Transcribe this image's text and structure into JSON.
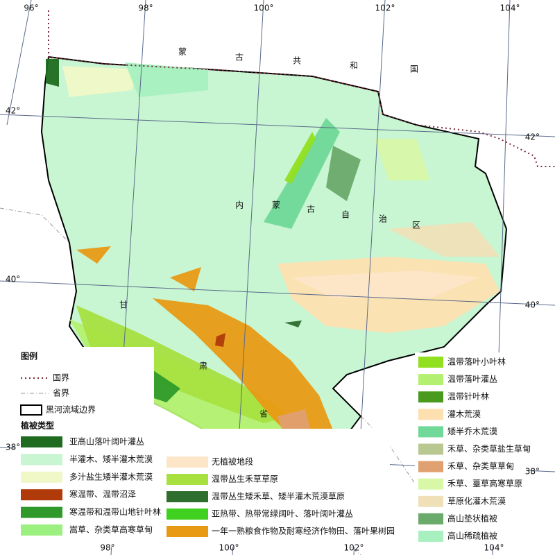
{
  "grid_labels": {
    "top": [
      "96°",
      "98°",
      "100°",
      "102°",
      "104°"
    ],
    "bottom": [
      "98°",
      "100°",
      "102°",
      "104°"
    ],
    "left": [
      "42°",
      "40°",
      "38°"
    ],
    "right": [
      "42°",
      "40°",
      "38°"
    ]
  },
  "place_labels": {
    "mongolia": [
      "蒙",
      "古",
      "共",
      "和",
      "国"
    ],
    "inner_mongolia": [
      "内",
      "蒙",
      "古",
      "自",
      "治",
      "区"
    ],
    "gansu": [
      "甘",
      "肃",
      "省"
    ]
  },
  "legend": {
    "title": "图例",
    "boundaries": [
      "国界",
      "省界",
      "黑河流域边界"
    ],
    "vegetation_title": "植被类型",
    "vegetation_types": [
      {
        "label": "亚高山落叶阔叶灌丛",
        "color": "#1f6b1f"
      },
      {
        "label": "半灌木、矮半灌木荒漠",
        "color": "#c8f5d2"
      },
      {
        "label": "多汁盐生矮半灌木荒漠",
        "color": "#f0f8c8"
      },
      {
        "label": "寒温带、温带沼泽",
        "color": "#b03a0a"
      },
      {
        "label": "寒温带和温带山地针叶林",
        "color": "#2f9a2a"
      },
      {
        "label": "嵩草、杂类草高寒草甸",
        "color": "#9cf080"
      },
      {
        "label": "无植被地段",
        "color": "#fde6c8"
      },
      {
        "label": "温带丛生禾草草原",
        "color": "#a8e040"
      },
      {
        "label": "温带丛生矮禾草、矮半灌木荒漠草原",
        "color": "#2e6e2e"
      },
      {
        "label": "亚热带、热带常绿阔叶、落叶阔叶灌丛",
        "color": "#40d020"
      },
      {
        "label": "一年一熟粮食作物及耐寒经济作物田、落叶果树园",
        "color": "#e89a14"
      },
      {
        "label": "温带落叶小叶林",
        "color": "#90e020"
      },
      {
        "label": "温带落叶灌丛",
        "color": "#b4f070"
      },
      {
        "label": "温带针叶林",
        "color": "#4a9a20"
      },
      {
        "label": "灌木荒漠",
        "color": "#fde0b0"
      },
      {
        "label": "矮半乔木荒漠",
        "color": "#70d898"
      },
      {
        "label": "禾草、杂类草盐生草甸",
        "color": "#b8c890"
      },
      {
        "label": "禾草、杂类草草甸",
        "color": "#e0a070"
      },
      {
        "label": "禾草、薹草高寒草原",
        "color": "#d8f8a8"
      },
      {
        "label": "草原化灌木荒漠",
        "color": "#f0e0b8"
      },
      {
        "label": "高山垫状植被",
        "color": "#6aaa6a"
      },
      {
        "label": "高山稀疏植被",
        "color": "#a8f0c0"
      }
    ]
  }
}
